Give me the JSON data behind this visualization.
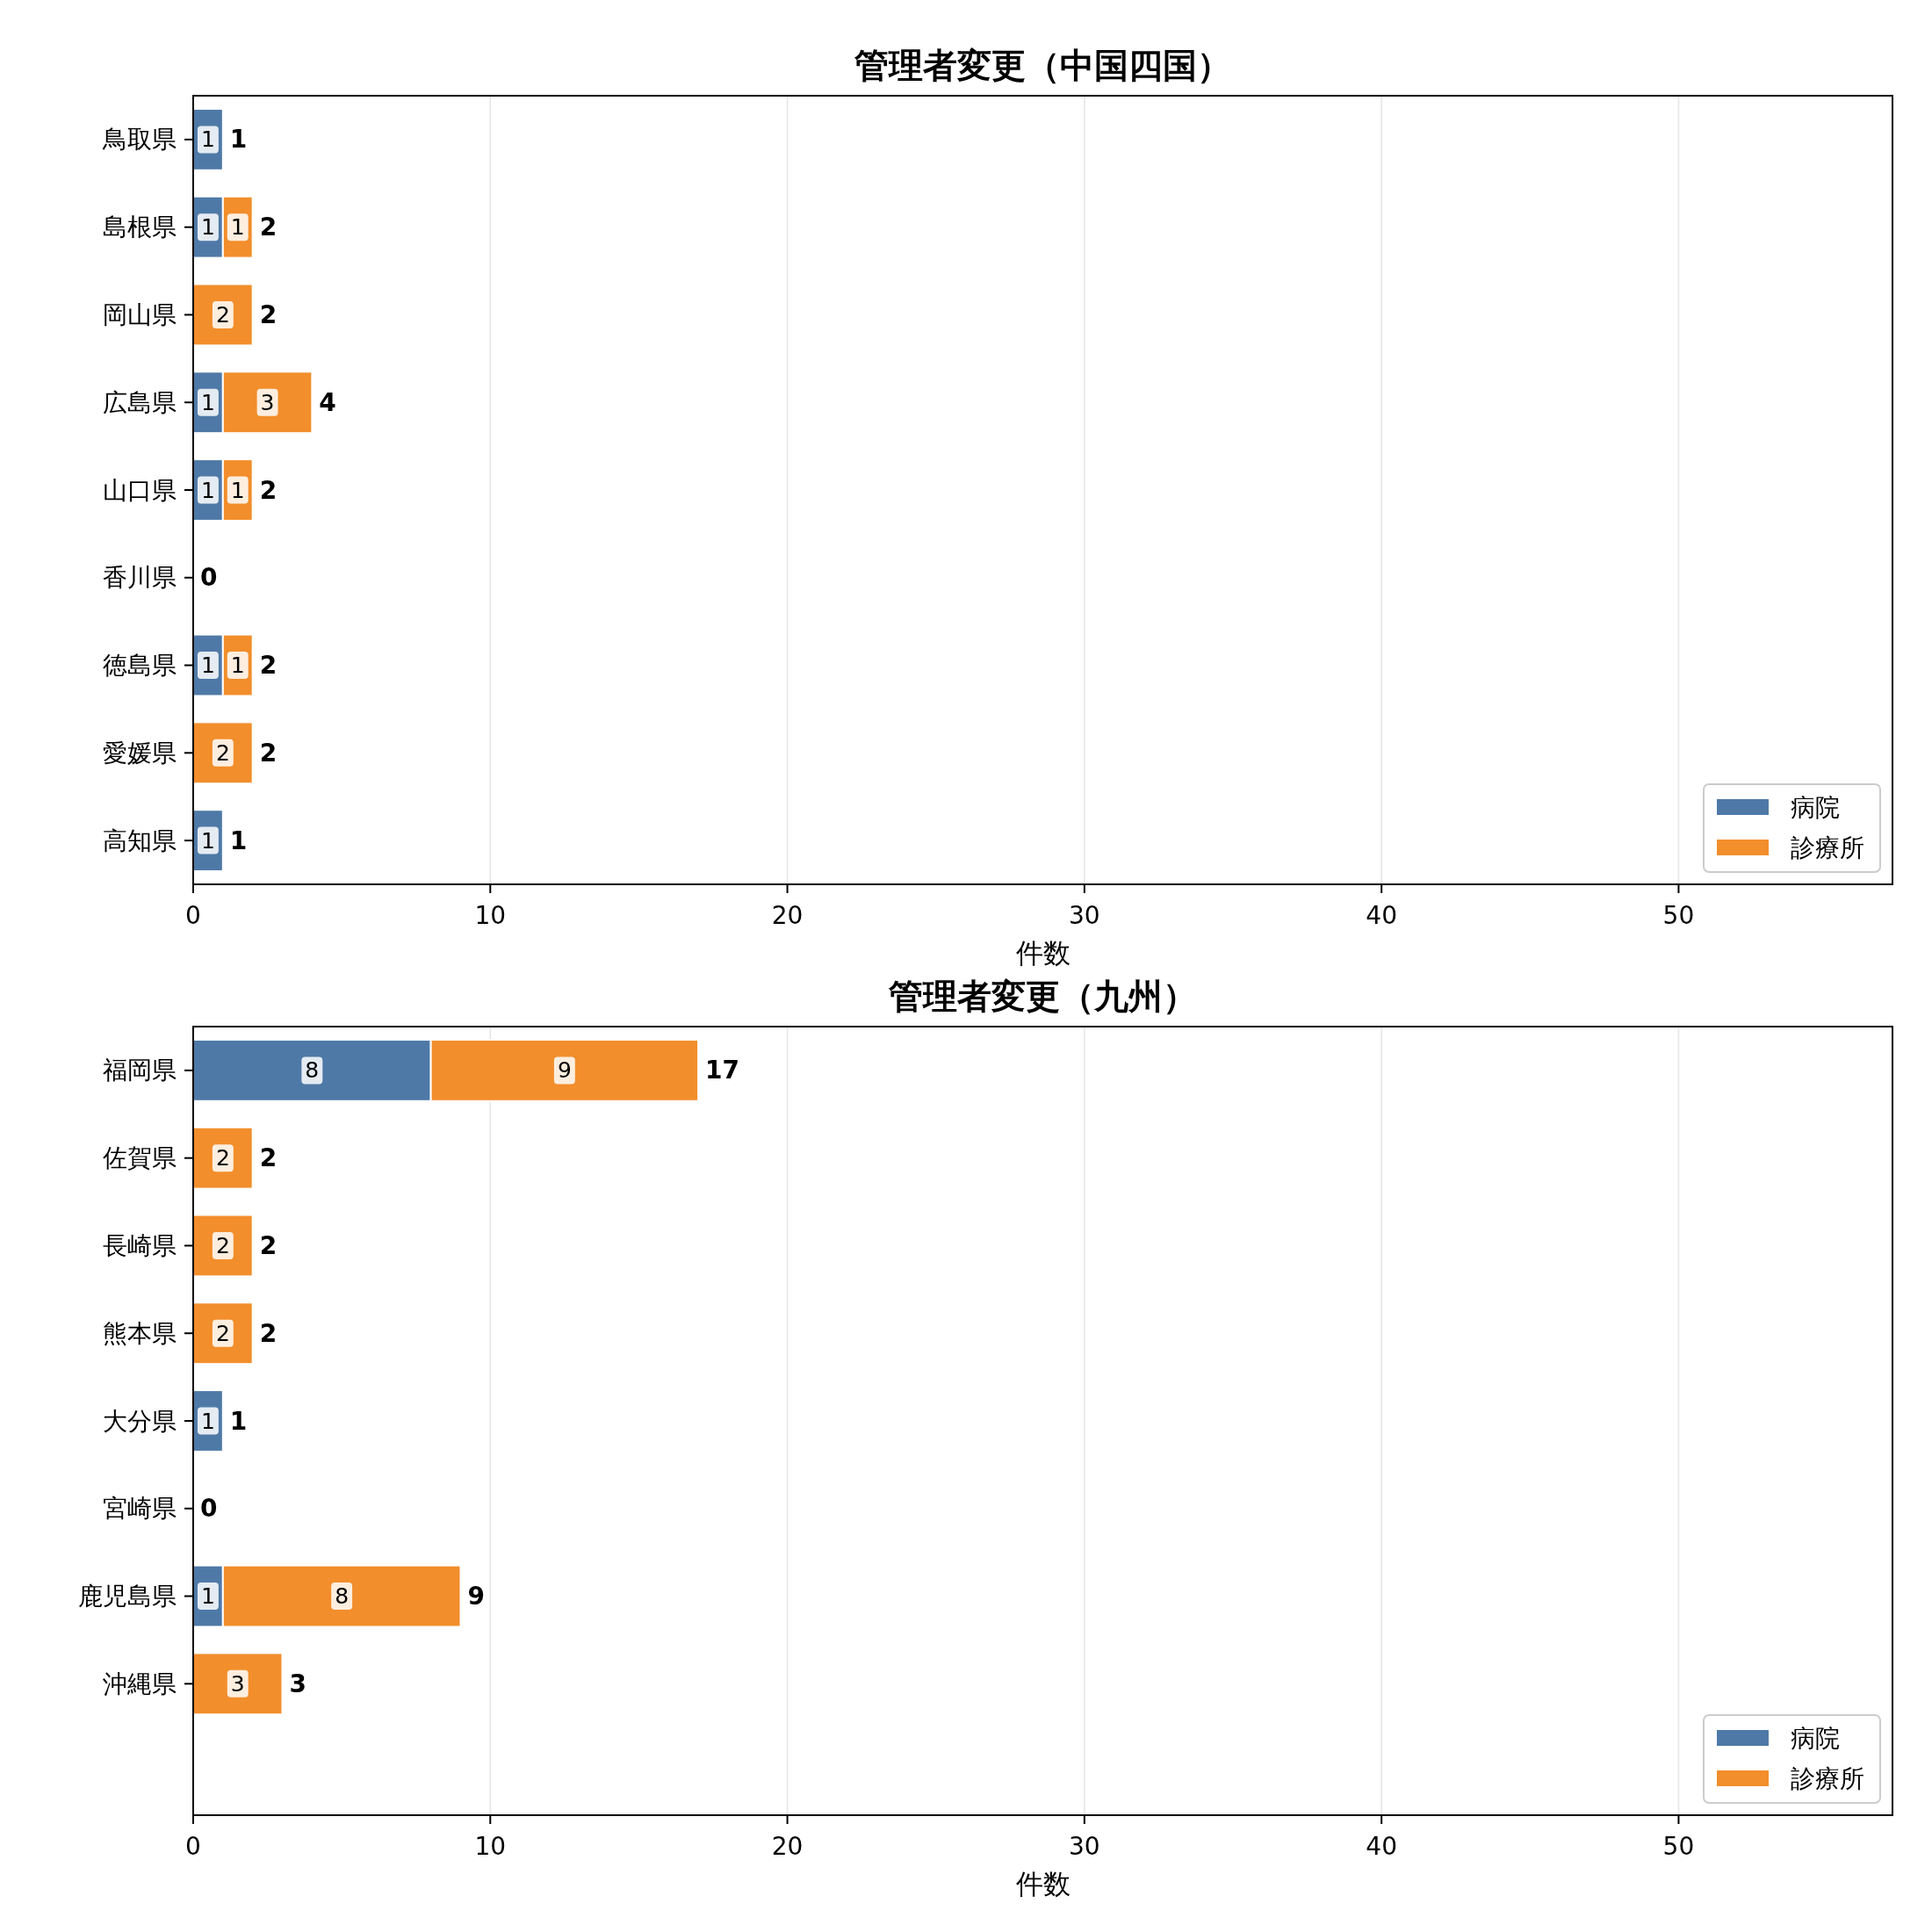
{
  "chart_data": [
    {
      "type": "bar",
      "orientation": "horizontal",
      "stacked": true,
      "title": "管理者変更（中国四国）",
      "xlabel": "件数",
      "categories": [
        "鳥取県",
        "島根県",
        "岡山県",
        "広島県",
        "山口県",
        "香川県",
        "徳島県",
        "愛媛県",
        "高知県"
      ],
      "series": [
        {
          "name": "病院",
          "color": "#4e79a7",
          "values": [
            1,
            1,
            0,
            1,
            1,
            0,
            1,
            0,
            1
          ],
          "value_labels": [
            "1",
            "1",
            null,
            "1",
            "1",
            null,
            "1",
            null,
            "1"
          ]
        },
        {
          "name": "診療所",
          "color": "#f28e2b",
          "values": [
            0,
            1,
            2,
            3,
            1,
            0,
            1,
            2,
            0
          ],
          "value_labels": [
            null,
            "1",
            "2",
            "3",
            "1",
            null,
            "1",
            "2",
            null
          ]
        }
      ],
      "totals": [
        "1",
        "2",
        "2",
        "4",
        "2",
        "0",
        "2",
        "2",
        "1"
      ],
      "xlim": [
        0,
        57.2
      ],
      "xticks": [
        0,
        10,
        20,
        30,
        40,
        50
      ],
      "grid": "x",
      "legend": "bottom right"
    },
    {
      "type": "bar",
      "orientation": "horizontal",
      "stacked": true,
      "title": "管理者変更（九州）",
      "xlabel": "件数",
      "categories": [
        "福岡県",
        "佐賀県",
        "長崎県",
        "熊本県",
        "大分県",
        "宮崎県",
        "鹿児島県",
        "沖縄県"
      ],
      "series": [
        {
          "name": "病院",
          "color": "#4e79a7",
          "values": [
            8,
            0,
            0,
            0,
            1,
            0,
            1,
            0
          ],
          "value_labels": [
            "8",
            null,
            null,
            null,
            "1",
            null,
            "1",
            null
          ]
        },
        {
          "name": "診療所",
          "color": "#f28e2b",
          "values": [
            9,
            2,
            2,
            2,
            0,
            0,
            8,
            3
          ],
          "value_labels": [
            "9",
            "2",
            "2",
            "2",
            null,
            null,
            "8",
            "3"
          ]
        }
      ],
      "totals": [
        "17",
        "2",
        "2",
        "2",
        "1",
        "0",
        "9",
        "3"
      ],
      "xlim": [
        0,
        57.2
      ],
      "xticks": [
        0,
        10,
        20,
        30,
        40,
        50
      ],
      "grid": "x",
      "legend": "bottom right"
    }
  ]
}
